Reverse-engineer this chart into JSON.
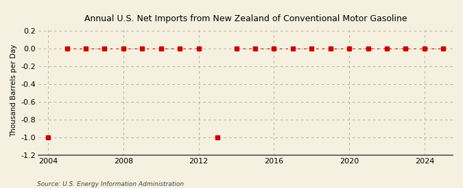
{
  "title": "Annual U.S. Net Imports from New Zealand of Conventional Motor Gasoline",
  "ylabel": "Thousand Barrels per Day",
  "source_text": "Source: U.S. Energy Information Administration",
  "background_color": "#f5f0e0",
  "marker_color": "#cc0000",
  "grid_color": "#b0a090",
  "xlim": [
    2003.5,
    2025.5
  ],
  "ylim": [
    -1.2,
    0.25
  ],
  "yticks": [
    0.2,
    0.0,
    -0.2,
    -0.4,
    -0.6,
    -0.8,
    -1.0,
    -1.2
  ],
  "xticks": [
    2004,
    2008,
    2012,
    2016,
    2020,
    2024
  ],
  "years": [
    2004,
    2005,
    2006,
    2007,
    2008,
    2009,
    2010,
    2011,
    2012,
    2013,
    2014,
    2015,
    2016,
    2017,
    2018,
    2019,
    2020,
    2021,
    2022,
    2023,
    2024,
    2025
  ],
  "values": [
    -1.0,
    0.0,
    0.0,
    0.0,
    0.0,
    0.0,
    0.0,
    0.0,
    0.0,
    -1.0,
    0.0,
    0.0,
    0.0,
    0.0,
    0.0,
    0.0,
    0.0,
    0.0,
    0.0,
    0.0,
    0.0,
    0.0
  ]
}
